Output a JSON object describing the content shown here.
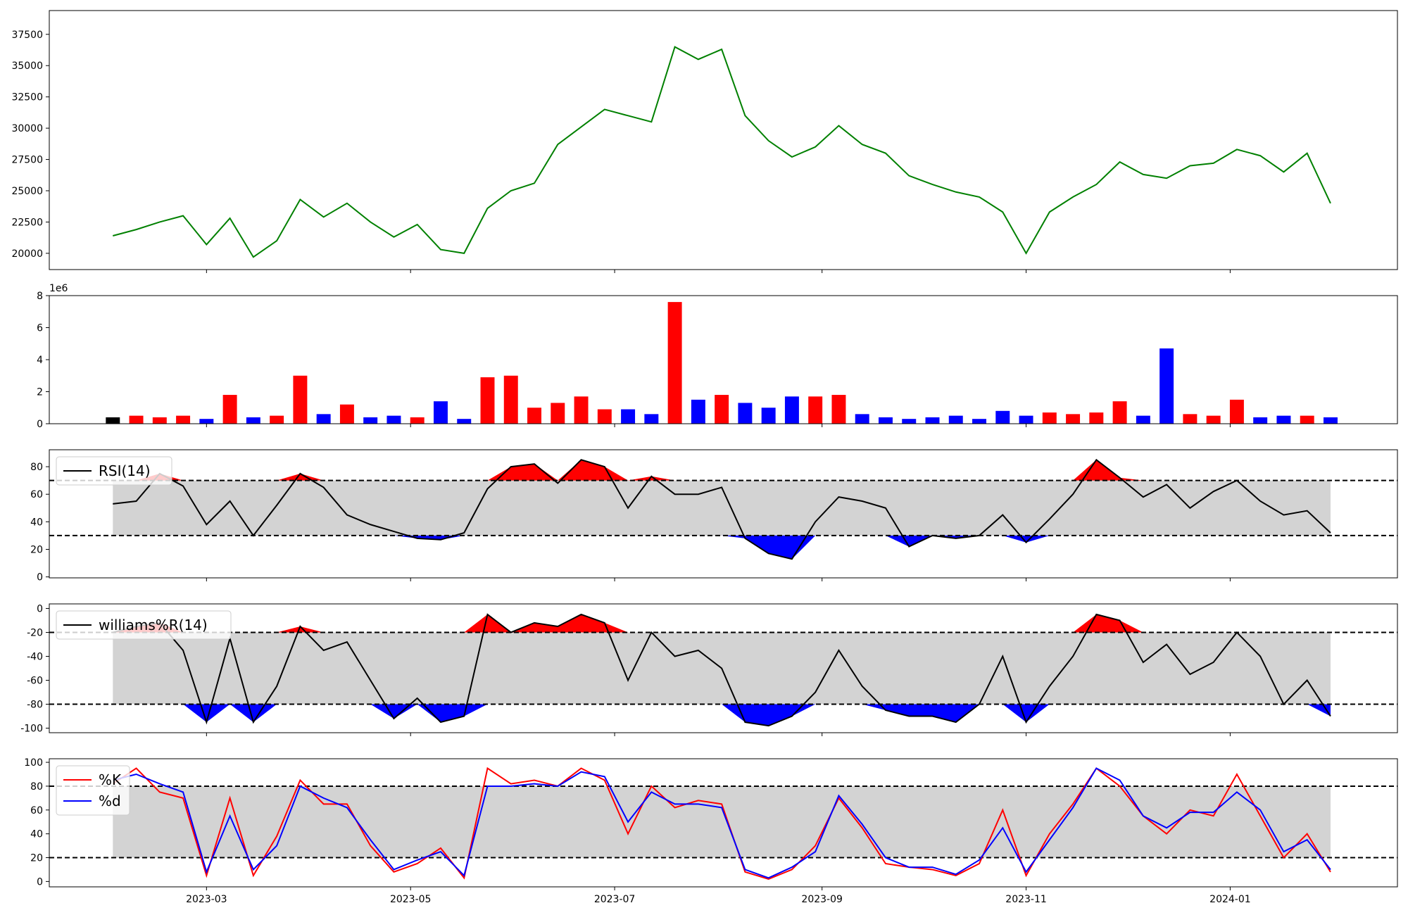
{
  "chart_data": [
    {
      "type": "line",
      "xlim": [
        "2023-01-13",
        "2024-02-20"
      ],
      "ylim": [
        18700,
        39400
      ],
      "yticks": [
        20000,
        22500,
        25000,
        27500,
        30000,
        32500,
        35000,
        37500
      ],
      "x": [
        "2023-02-01",
        "2023-02-08",
        "2023-02-15",
        "2023-02-22",
        "2023-03-01",
        "2023-03-08",
        "2023-03-15",
        "2023-03-22",
        "2023-03-29",
        "2023-04-05",
        "2023-04-12",
        "2023-04-19",
        "2023-04-26",
        "2023-05-03",
        "2023-05-10",
        "2023-05-17",
        "2023-05-24",
        "2023-05-31",
        "2023-06-07",
        "2023-06-14",
        "2023-06-21",
        "2023-06-28",
        "2023-07-05",
        "2023-07-12",
        "2023-07-19",
        "2023-07-26",
        "2023-08-02",
        "2023-08-09",
        "2023-08-16",
        "2023-08-23",
        "2023-08-30",
        "2023-09-06",
        "2023-09-13",
        "2023-09-20",
        "2023-09-27",
        "2023-10-04",
        "2023-10-11",
        "2023-10-18",
        "2023-10-25",
        "2023-11-01",
        "2023-11-08",
        "2023-11-15",
        "2023-11-22",
        "2023-11-29",
        "2023-12-06",
        "2023-12-13",
        "2023-12-20",
        "2023-12-27",
        "2024-01-03",
        "2024-01-10",
        "2024-01-17",
        "2024-01-24",
        "2024-01-31"
      ],
      "series": [
        {
          "color": "green",
          "values": [
            21400,
            21900,
            22500,
            23000,
            20700,
            22800,
            19700,
            21000,
            24300,
            22900,
            24000,
            22500,
            21300,
            22300,
            20300,
            20000,
            23600,
            25000,
            25600,
            28700,
            30100,
            31500,
            31000,
            30500,
            36500,
            35500,
            36300,
            31000,
            29000,
            27700,
            28500,
            30200,
            28700,
            28000,
            26200,
            25500,
            24900,
            24500,
            23300,
            20000,
            23300,
            24500,
            25500,
            27300,
            26300,
            26000,
            27000,
            27200,
            28300,
            27800,
            26500,
            28000,
            24000
          ]
        }
      ]
    },
    {
      "type": "bar",
      "xlim": [
        "2023-01-13",
        "2024-02-20"
      ],
      "ylim": [
        0,
        8000000
      ],
      "y_offset_label": "1e6",
      "yticks": [
        {
          "value": 0,
          "label": "0"
        },
        {
          "value": 2000000,
          "label": "2"
        },
        {
          "value": 4000000,
          "label": "4"
        },
        {
          "value": 6000000,
          "label": "6"
        },
        {
          "value": 8000000,
          "label": "8"
        }
      ],
      "up_color": "red",
      "down_color": "blue",
      "flat_color": "black",
      "x": [
        "2023-02-01",
        "2023-02-08",
        "2023-02-15",
        "2023-02-22",
        "2023-03-01",
        "2023-03-08",
        "2023-03-15",
        "2023-03-22",
        "2023-03-29",
        "2023-04-05",
        "2023-04-12",
        "2023-04-19",
        "2023-04-26",
        "2023-05-03",
        "2023-05-10",
        "2023-05-17",
        "2023-05-24",
        "2023-05-31",
        "2023-06-07",
        "2023-06-14",
        "2023-06-21",
        "2023-06-28",
        "2023-07-05",
        "2023-07-12",
        "2023-07-19",
        "2023-07-26",
        "2023-08-02",
        "2023-08-09",
        "2023-08-16",
        "2023-08-23",
        "2023-08-30",
        "2023-09-06",
        "2023-09-13",
        "2023-09-20",
        "2023-09-27",
        "2023-10-04",
        "2023-10-11",
        "2023-10-18",
        "2023-10-25",
        "2023-11-01",
        "2023-11-08",
        "2023-11-15",
        "2023-11-22",
        "2023-11-29",
        "2023-12-06",
        "2023-12-13",
        "2023-12-20",
        "2023-12-27",
        "2024-01-03",
        "2024-01-10",
        "2024-01-17",
        "2024-01-24",
        "2024-01-31"
      ],
      "values": [
        400000,
        500000,
        400000,
        500000,
        300000,
        1800000,
        400000,
        500000,
        3000000,
        600000,
        1200000,
        400000,
        500000,
        400000,
        1400000,
        300000,
        2900000,
        3000000,
        1000000,
        1300000,
        1700000,
        900000,
        900000,
        600000,
        7600000,
        1500000,
        1800000,
        1300000,
        1000000,
        1700000,
        1700000,
        1800000,
        600000,
        400000,
        300000,
        400000,
        500000,
        300000,
        800000,
        500000,
        700000,
        600000,
        700000,
        1400000,
        500000,
        4700000,
        600000,
        500000,
        1500000,
        400000,
        500000,
        500000,
        400000
      ]
    },
    {
      "type": "indicator",
      "xlim": [
        "2023-01-13",
        "2024-02-20"
      ],
      "ylim": [
        -0.7,
        92.3
      ],
      "yticks": [
        0,
        20,
        40,
        60,
        80
      ],
      "thresholds": [
        30,
        70
      ],
      "band_color": "lightgray",
      "fill_above_color": "red",
      "fill_below_color": "blue",
      "legend": "upper left",
      "x": [
        "2023-02-01",
        "2023-02-08",
        "2023-02-15",
        "2023-02-22",
        "2023-03-01",
        "2023-03-08",
        "2023-03-15",
        "2023-03-22",
        "2023-03-29",
        "2023-04-05",
        "2023-04-12",
        "2023-04-19",
        "2023-04-26",
        "2023-05-03",
        "2023-05-10",
        "2023-05-17",
        "2023-05-24",
        "2023-05-31",
        "2023-06-07",
        "2023-06-14",
        "2023-06-21",
        "2023-06-28",
        "2023-07-05",
        "2023-07-12",
        "2023-07-19",
        "2023-07-26",
        "2023-08-02",
        "2023-08-09",
        "2023-08-16",
        "2023-08-23",
        "2023-08-30",
        "2023-09-06",
        "2023-09-13",
        "2023-09-20",
        "2023-09-27",
        "2023-10-04",
        "2023-10-11",
        "2023-10-18",
        "2023-10-25",
        "2023-11-01",
        "2023-11-08",
        "2023-11-15",
        "2023-11-22",
        "2023-11-29",
        "2023-12-06",
        "2023-12-13",
        "2023-12-20",
        "2023-12-27",
        "2024-01-03",
        "2024-01-10",
        "2024-01-17",
        "2024-01-24",
        "2024-01-31"
      ],
      "series": [
        {
          "name": "RSI(14)",
          "color": "black",
          "values": [
            53,
            55,
            75,
            66,
            38,
            55,
            30,
            52,
            75,
            65,
            45,
            38,
            33,
            28,
            27,
            32,
            64,
            80,
            82,
            68,
            85,
            80,
            50,
            73,
            60,
            60,
            65,
            28,
            17,
            13,
            40,
            58,
            55,
            50,
            22,
            30,
            28,
            30,
            45,
            25,
            42,
            60,
            85,
            72,
            58,
            67,
            50,
            62,
            70,
            55,
            45,
            48,
            32
          ]
        }
      ]
    },
    {
      "type": "indicator",
      "xlim": [
        "2023-01-13",
        "2024-02-20"
      ],
      "ylim": [
        -103.8,
        3.8
      ],
      "yticks": [
        -100,
        -80,
        -60,
        -40,
        -20,
        0
      ],
      "thresholds": [
        -80,
        -20
      ],
      "band_color": "lightgray",
      "fill_above_color": "red",
      "fill_below_color": "blue",
      "legend": "upper left",
      "x": [
        "2023-02-01",
        "2023-02-08",
        "2023-02-15",
        "2023-02-22",
        "2023-03-01",
        "2023-03-08",
        "2023-03-15",
        "2023-03-22",
        "2023-03-29",
        "2023-04-05",
        "2023-04-12",
        "2023-04-19",
        "2023-04-26",
        "2023-05-03",
        "2023-05-10",
        "2023-05-17",
        "2023-05-24",
        "2023-05-31",
        "2023-06-07",
        "2023-06-14",
        "2023-06-21",
        "2023-06-28",
        "2023-07-05",
        "2023-07-12",
        "2023-07-19",
        "2023-07-26",
        "2023-08-02",
        "2023-08-09",
        "2023-08-16",
        "2023-08-23",
        "2023-08-30",
        "2023-09-06",
        "2023-09-13",
        "2023-09-20",
        "2023-09-27",
        "2023-10-04",
        "2023-10-11",
        "2023-10-18",
        "2023-10-25",
        "2023-11-01",
        "2023-11-08",
        "2023-11-15",
        "2023-11-22",
        "2023-11-29",
        "2023-12-06",
        "2023-12-13",
        "2023-12-20",
        "2023-12-27",
        "2024-01-03",
        "2024-01-10",
        "2024-01-17",
        "2024-01-24",
        "2024-01-31"
      ],
      "series": [
        {
          "name": "williams%R(14)",
          "color": "black",
          "values": [
            -20,
            -15,
            -12,
            -35,
            -95,
            -25,
            -95,
            -65,
            -15,
            -35,
            -28,
            -60,
            -92,
            -75,
            -95,
            -90,
            -5,
            -20,
            -12,
            -15,
            -5,
            -12,
            -60,
            -20,
            -40,
            -35,
            -50,
            -95,
            -98,
            -90,
            -70,
            -35,
            -65,
            -85,
            -90,
            -90,
            -95,
            -80,
            -40,
            -95,
            -65,
            -40,
            -5,
            -10,
            -45,
            -30,
            -55,
            -45,
            -20,
            -40,
            -80,
            -60,
            -90
          ]
        }
      ]
    },
    {
      "type": "indicator",
      "xlim": [
        "2023-01-13",
        "2024-02-20"
      ],
      "ylim": [
        -4.5,
        103
      ],
      "yticks": [
        0,
        20,
        40,
        60,
        80,
        100
      ],
      "thresholds": [
        20,
        80
      ],
      "band_color": "lightgray",
      "legend": "upper left",
      "xticks": [
        {
          "value": "2023-03-01",
          "label": "2023-03"
        },
        {
          "value": "2023-05-01",
          "label": "2023-05"
        },
        {
          "value": "2023-07-01",
          "label": "2023-07"
        },
        {
          "value": "2023-09-01",
          "label": "2023-09"
        },
        {
          "value": "2023-11-01",
          "label": "2023-11"
        },
        {
          "value": "2024-01-01",
          "label": "2024-01"
        }
      ],
      "x": [
        "2023-02-01",
        "2023-02-08",
        "2023-02-15",
        "2023-02-22",
        "2023-03-01",
        "2023-03-08",
        "2023-03-15",
        "2023-03-22",
        "2023-03-29",
        "2023-04-05",
        "2023-04-12",
        "2023-04-19",
        "2023-04-26",
        "2023-05-03",
        "2023-05-10",
        "2023-05-17",
        "2023-05-24",
        "2023-05-31",
        "2023-06-07",
        "2023-06-14",
        "2023-06-21",
        "2023-06-28",
        "2023-07-05",
        "2023-07-12",
        "2023-07-19",
        "2023-07-26",
        "2023-08-02",
        "2023-08-09",
        "2023-08-16",
        "2023-08-23",
        "2023-08-30",
        "2023-09-06",
        "2023-09-13",
        "2023-09-20",
        "2023-09-27",
        "2023-10-04",
        "2023-10-11",
        "2023-10-18",
        "2023-10-25",
        "2023-11-01",
        "2023-11-08",
        "2023-11-15",
        "2023-11-22",
        "2023-11-29",
        "2023-12-06",
        "2023-12-13",
        "2023-12-20",
        "2023-12-27",
        "2024-01-03",
        "2024-01-10",
        "2024-01-17",
        "2024-01-24",
        "2024-01-31"
      ],
      "series": [
        {
          "name": "%K",
          "color": "red",
          "values": [
            82,
            95,
            75,
            70,
            5,
            70,
            5,
            38,
            85,
            65,
            65,
            30,
            8,
            15,
            28,
            3,
            95,
            82,
            85,
            80,
            95,
            85,
            40,
            80,
            62,
            68,
            65,
            8,
            2,
            10,
            30,
            70,
            45,
            15,
            12,
            10,
            5,
            15,
            60,
            5,
            40,
            65,
            95,
            80,
            55,
            40,
            60,
            55,
            90,
            55,
            20,
            40,
            8
          ]
        },
        {
          "name": "%d",
          "color": "blue",
          "values": [
            85,
            90,
            82,
            75,
            8,
            55,
            10,
            30,
            80,
            70,
            62,
            35,
            10,
            18,
            25,
            5,
            80,
            80,
            82,
            80,
            92,
            88,
            50,
            75,
            65,
            65,
            62,
            10,
            3,
            12,
            25,
            72,
            48,
            20,
            12,
            12,
            6,
            18,
            45,
            8,
            35,
            62,
            95,
            85,
            55,
            45,
            58,
            58,
            75,
            60,
            25,
            35,
            10
          ]
        }
      ]
    }
  ]
}
